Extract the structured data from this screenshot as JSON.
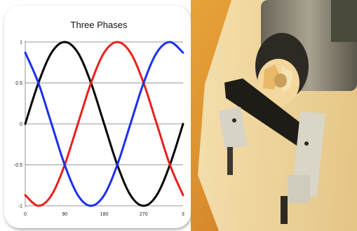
{
  "chart_data": {
    "type": "line",
    "title": "Three Phases",
    "xlabel": "",
    "ylabel": "",
    "xlim": [
      0,
      360
    ],
    "ylim": [
      -1,
      1
    ],
    "x_ticks": [
      "0",
      "90",
      "180",
      "270",
      "3"
    ],
    "y_ticks": [
      "1",
      "0.5",
      "0",
      "-0.5",
      "-1"
    ],
    "grid": "horizontal",
    "series": [
      {
        "color": "#000000",
        "x": [
          0,
          30,
          60,
          90,
          120,
          150,
          180,
          210,
          240,
          270,
          300,
          330,
          360
        ],
        "values": [
          0,
          0.5,
          0.87,
          1,
          0.87,
          0.5,
          0,
          -0.5,
          -0.87,
          -1,
          -0.87,
          -0.5,
          0
        ]
      },
      {
        "color": "#e8201c",
        "x": [
          0,
          30,
          60,
          90,
          120,
          150,
          180,
          210,
          240,
          270,
          300,
          330,
          360
        ],
        "values": [
          -0.87,
          -1,
          -0.87,
          -0.5,
          0,
          0.5,
          0.87,
          1,
          0.87,
          0.5,
          0,
          -0.5,
          -0.87
        ]
      },
      {
        "color": "#1a2ff0",
        "x": [
          0,
          30,
          60,
          90,
          120,
          150,
          180,
          210,
          240,
          270,
          300,
          330,
          360
        ],
        "values": [
          0.87,
          0.5,
          0,
          -0.5,
          -0.87,
          -1,
          -0.87,
          -0.5,
          0,
          0.5,
          0.87,
          1,
          0.87
        ]
      }
    ]
  },
  "photo": {
    "subject": "motor-and-fan-assembly-photo"
  }
}
